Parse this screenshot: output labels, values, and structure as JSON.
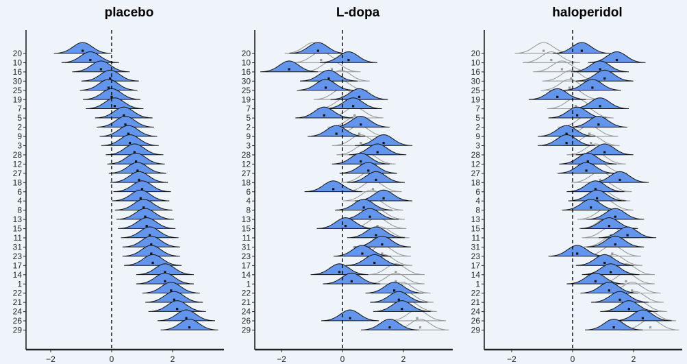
{
  "chart_data": [
    {
      "type": "density-ridge",
      "title": "placebo",
      "categories": [
        "20",
        "10",
        "16",
        "30",
        "25",
        "19",
        "7",
        "5",
        "2",
        "9",
        "3",
        "28",
        "12",
        "27",
        "18",
        "6",
        "4",
        "8",
        "13",
        "15",
        "11",
        "31",
        "23",
        "17",
        "14",
        "1",
        "22",
        "21",
        "24",
        "26",
        "29"
      ],
      "xticks": [
        -2,
        0,
        2
      ],
      "xlim": [
        -3.3,
        3.6
      ],
      "reference_line": 0,
      "series": [
        {
          "name": "",
          "color": "#6495ed",
          "centers": [
            -0.95,
            -0.7,
            -0.35,
            -0.05,
            -0.1,
            0.0,
            0.1,
            0.4,
            0.45,
            0.55,
            0.6,
            0.75,
            0.8,
            0.85,
            0.9,
            1.0,
            0.95,
            1.05,
            1.1,
            1.15,
            1.25,
            1.3,
            1.3,
            1.35,
            1.75,
            1.75,
            1.95,
            2.05,
            2.15,
            2.45,
            2.55
          ]
        }
      ]
    },
    {
      "type": "density-ridge",
      "title": "L-dopa",
      "categories": [
        "20",
        "10",
        "16",
        "30",
        "25",
        "19",
        "7",
        "5",
        "2",
        "9",
        "3",
        "28",
        "12",
        "27",
        "18",
        "6",
        "4",
        "8",
        "13",
        "15",
        "11",
        "31",
        "23",
        "17",
        "14",
        "1",
        "22",
        "21",
        "24",
        "26",
        "29"
      ],
      "xticks": [
        -2,
        0,
        2
      ],
      "xlim": [
        -3.3,
        3.6
      ],
      "reference_line": 0,
      "series": [
        {
          "name": "",
          "color": "#6495ed",
          "centers": [
            -0.8,
            0.2,
            -1.75,
            -0.45,
            -0.55,
            0.55,
            0.35,
            -0.6,
            0.6,
            -0.2,
            1.35,
            1.15,
            0.6,
            0.85,
            1.1,
            -0.3,
            1.35,
            0.7,
            0.9,
            0.1,
            1.1,
            1.3,
            0.65,
            1.05,
            -0.1,
            0.3,
            1.7,
            1.85,
            1.95,
            0.25,
            1.55
          ]
        },
        {
          "name": "",
          "color": "#999999",
          "centers": [
            -0.95,
            -0.7,
            -0.35,
            -0.05,
            -0.1,
            0.0,
            0.1,
            0.4,
            0.45,
            0.55,
            0.6,
            0.75,
            0.8,
            0.85,
            0.9,
            1.0,
            0.95,
            1.05,
            1.1,
            1.15,
            1.25,
            1.3,
            1.3,
            1.35,
            1.75,
            1.75,
            1.95,
            2.05,
            2.15,
            2.45,
            2.55
          ]
        }
      ]
    },
    {
      "type": "density-ridge",
      "title": "haloperidol",
      "categories": [
        "20",
        "10",
        "16",
        "30",
        "25",
        "19",
        "7",
        "5",
        "2",
        "9",
        "3",
        "28",
        "12",
        "27",
        "18",
        "6",
        "4",
        "8",
        "13",
        "15",
        "11",
        "31",
        "23",
        "17",
        "14",
        "1",
        "22",
        "21",
        "24",
        "26",
        "29"
      ],
      "xticks": [
        -2,
        0,
        2
      ],
      "xlim": [
        -3.3,
        3.6
      ],
      "reference_line": 0,
      "series": [
        {
          "name": "",
          "color": "#6495ed",
          "centers": [
            0.3,
            1.45,
            0.9,
            1.05,
            0.65,
            -0.5,
            0.9,
            0.15,
            0.85,
            -0.2,
            -0.2,
            1.05,
            0.5,
            0.45,
            1.55,
            0.75,
            0.8,
            0.6,
            1.4,
            1.2,
            1.8,
            1.4,
            0.15,
            1.05,
            1.25,
            0.75,
            1.2,
            1.55,
            1.85,
            2.3,
            1.35
          ]
        },
        {
          "name": "",
          "color": "#999999",
          "centers": [
            -0.95,
            -0.7,
            -0.35,
            -0.05,
            -0.1,
            0.0,
            0.1,
            0.4,
            0.45,
            0.55,
            0.6,
            0.75,
            0.8,
            0.85,
            0.9,
            1.0,
            0.95,
            1.05,
            1.1,
            1.15,
            1.25,
            1.3,
            1.3,
            1.35,
            1.75,
            1.75,
            1.95,
            2.05,
            2.15,
            2.45,
            2.55
          ]
        }
      ]
    }
  ]
}
